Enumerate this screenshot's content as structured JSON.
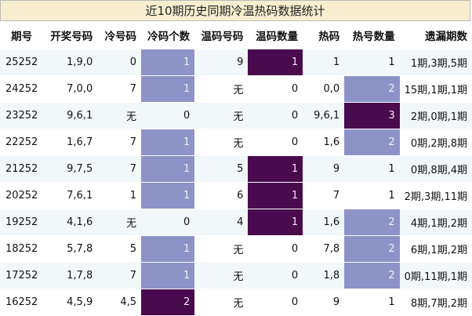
{
  "title": "近10期历史同期冷温热码数据统计",
  "headers": [
    "期号",
    "开奖号码",
    "冷号码",
    "冷码个数",
    "温码号码",
    "温码数量",
    "热码",
    "热号数量",
    "遗漏期数"
  ],
  "rows": [
    [
      "25252",
      "1,9,0",
      "0",
      "1",
      "9",
      "1",
      "1",
      "1",
      "1期,3期,5期"
    ],
    [
      "24252",
      "7,0,0",
      "7",
      "1",
      "无",
      "0",
      "0,0",
      "2",
      "15期,1期,1期"
    ],
    [
      "23252",
      "9,6,1",
      "无",
      "0",
      "无",
      "0",
      "9,6,1",
      "3",
      "2期,0期,1期"
    ],
    [
      "22252",
      "1,6,7",
      "7",
      "1",
      "无",
      "0",
      "1,6",
      "2",
      "0期,2期,8期"
    ],
    [
      "21252",
      "9,7,5",
      "7",
      "1",
      "5",
      "1",
      "9",
      "1",
      "0期,8期,4期"
    ],
    [
      "20252",
      "7,6,1",
      "1",
      "1",
      "6",
      "1",
      "7",
      "1",
      "2期,3期,11期"
    ],
    [
      "19252",
      "4,1,6",
      "无",
      "0",
      "4",
      "1",
      "1,6",
      "2",
      "4期,1期,2期"
    ],
    [
      "18252",
      "5,7,8",
      "5",
      "1",
      "无",
      "0",
      "7,8",
      "2",
      "6期,1期,2期"
    ],
    [
      "17252",
      "1,7,8",
      "7",
      "1",
      "无",
      "0",
      "1,8",
      "2",
      "0期,11期,1期"
    ],
    [
      "16252",
      "4,5,9",
      "4,5",
      "2",
      "无",
      "0",
      "9",
      "1",
      "8期,7期,2期"
    ]
  ],
  "colors": {
    "title_bg": "#f7eecf",
    "level_light": "#8d93c6",
    "level_dark": "#4a0a4e",
    "row_tint": "#f2f8fa"
  }
}
